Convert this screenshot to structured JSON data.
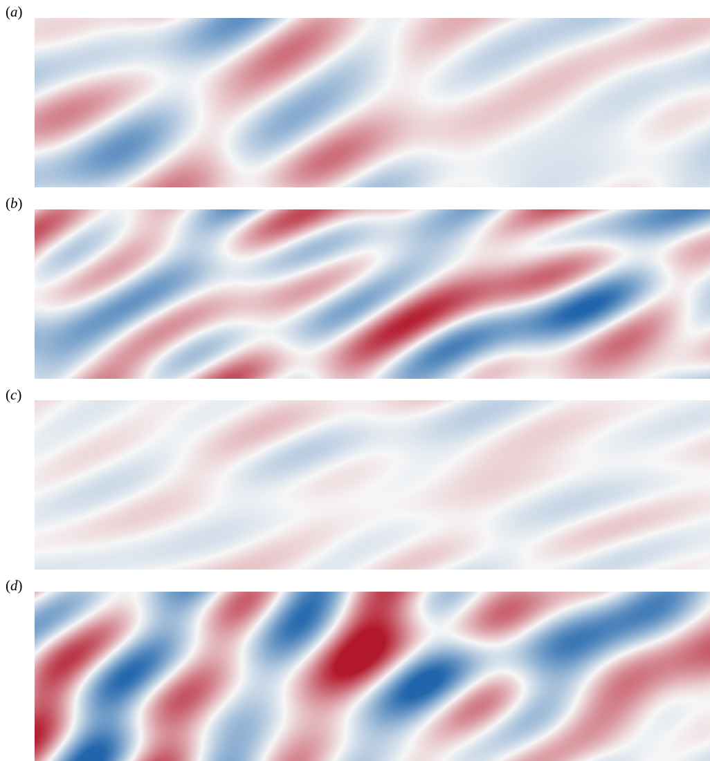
{
  "panels": [
    {
      "id": "a",
      "label_open": "(",
      "letter": "a",
      "label_close": ")",
      "colormap": "diverging-red-blue",
      "red": "#b2182b",
      "blue": "#2166ac",
      "amplitude": 0.55,
      "seed": 11,
      "tilt": -0.35
    },
    {
      "id": "b",
      "label_open": "(",
      "letter": "b",
      "label_close": ")",
      "colormap": "diverging-red-blue",
      "red": "#b2182b",
      "blue": "#2166ac",
      "amplitude": 0.8,
      "seed": 23,
      "tilt": -0.1
    },
    {
      "id": "c",
      "label_open": "(",
      "letter": "c",
      "label_close": ")",
      "colormap": "diverging-red-blue",
      "red": "#b2182b",
      "blue": "#2166ac",
      "amplitude": 0.22,
      "seed": 37,
      "tilt": 0.9
    },
    {
      "id": "d",
      "label_open": "(",
      "letter": "d",
      "label_close": ")",
      "colormap": "diverging-red-blue",
      "red": "#b2182b",
      "blue": "#2166ac",
      "amplitude": 0.95,
      "seed": 51,
      "tilt": -0.45
    }
  ]
}
